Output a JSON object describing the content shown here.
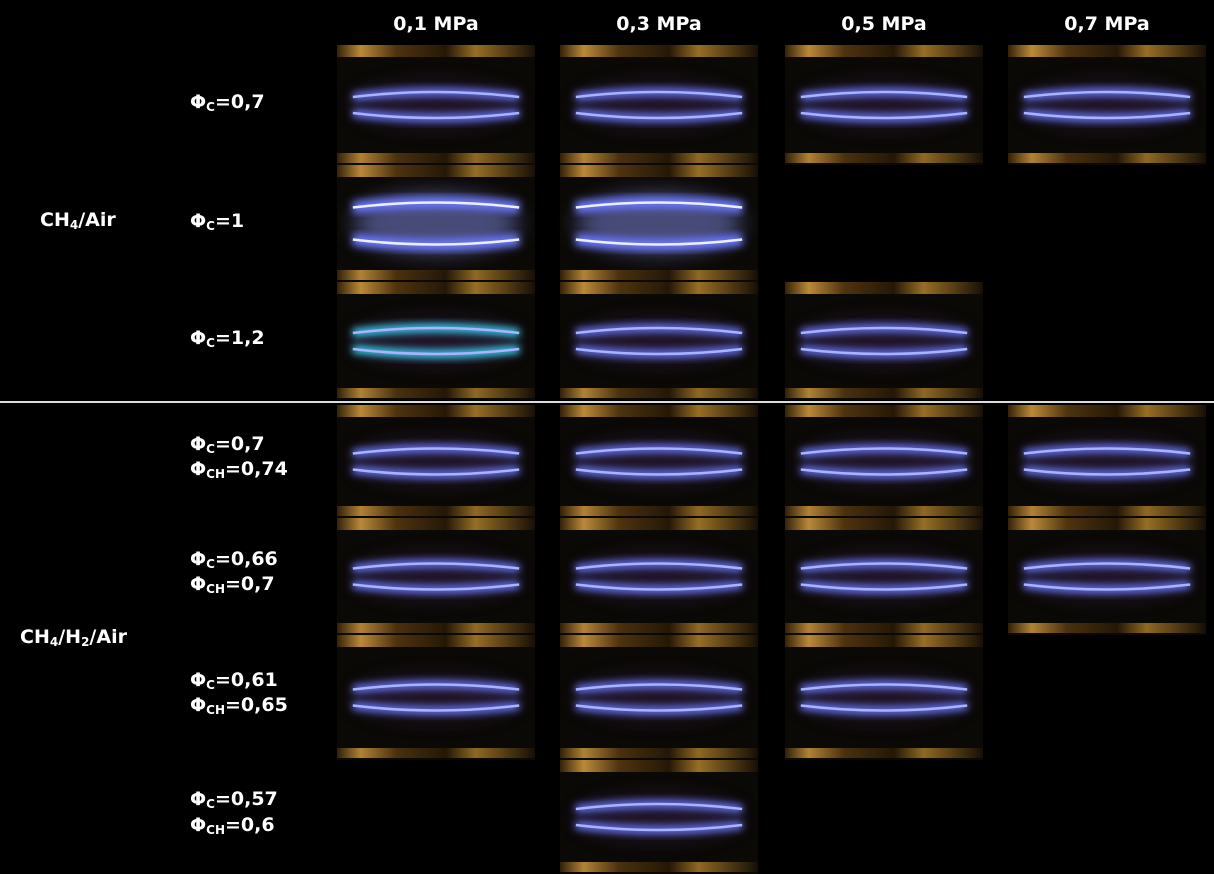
{
  "header": {
    "columns": [
      "0,1 MPa",
      "0,3 MPa",
      "0,5 MPa",
      "0,7 MPa"
    ]
  },
  "groups": [
    {
      "label": [
        {
          "text": "CH"
        },
        {
          "sub": "4"
        },
        {
          "text": "/Air"
        }
      ],
      "rows": [
        {
          "label": [
            [
              {
                "text": "Φ"
              },
              {
                "sub": "C"
              },
              {
                "text": "=0,7"
              }
            ]
          ],
          "photos": [
            true,
            true,
            true,
            true
          ]
        },
        {
          "label": [
            [
              {
                "text": "Φ"
              },
              {
                "sub": "C"
              },
              {
                "text": "=1"
              }
            ]
          ],
          "photos": [
            true,
            true,
            false,
            false
          ]
        },
        {
          "label": [
            [
              {
                "text": "Φ"
              },
              {
                "sub": "C"
              },
              {
                "text": "=1,2"
              }
            ]
          ],
          "photos": [
            true,
            true,
            true,
            false
          ]
        }
      ]
    },
    {
      "label": [
        {
          "text": "CH"
        },
        {
          "sub": "4"
        },
        {
          "text": "/H"
        },
        {
          "sub": "2"
        },
        {
          "text": "/Air"
        }
      ],
      "rows": [
        {
          "label": [
            [
              {
                "text": "Φ"
              },
              {
                "sub": "C"
              },
              {
                "text": "=0,7"
              }
            ],
            [
              {
                "text": "Φ"
              },
              {
                "sub": "CH"
              },
              {
                "text": "=0,74"
              }
            ]
          ],
          "photos": [
            true,
            true,
            true,
            true
          ]
        },
        {
          "label": [
            [
              {
                "text": "Φ"
              },
              {
                "sub": "C"
              },
              {
                "text": "=0,66"
              }
            ],
            [
              {
                "text": "Φ"
              },
              {
                "sub": "CH"
              },
              {
                "text": "=0,7"
              }
            ]
          ],
          "photos": [
            true,
            true,
            true,
            true
          ]
        },
        {
          "label": [
            [
              {
                "text": "Φ"
              },
              {
                "sub": "C"
              },
              {
                "text": "=0,61"
              }
            ],
            [
              {
                "text": "Φ"
              },
              {
                "sub": "CH"
              },
              {
                "text": "=0,65"
              }
            ]
          ],
          "photos": [
            true,
            true,
            true,
            false
          ]
        },
        {
          "label": [
            [
              {
                "text": "Φ"
              },
              {
                "sub": "C"
              },
              {
                "text": "=0,57"
              }
            ],
            [
              {
                "text": "Φ"
              },
              {
                "sub": "CH"
              },
              {
                "text": "=0,6"
              }
            ]
          ],
          "photos": [
            false,
            true,
            false,
            false
          ]
        }
      ]
    }
  ]
}
